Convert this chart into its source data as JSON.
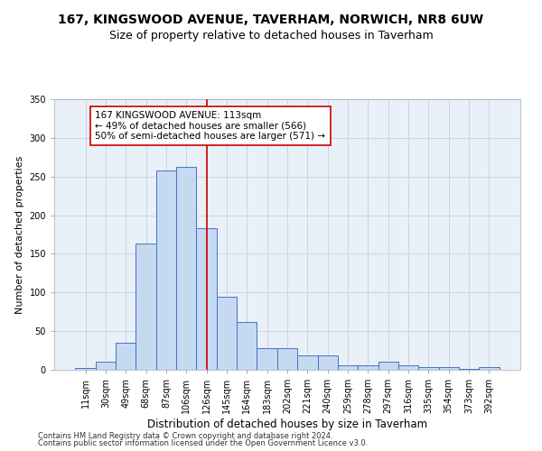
{
  "title": "167, KINGSWOOD AVENUE, TAVERHAM, NORWICH, NR8 6UW",
  "subtitle": "Size of property relative to detached houses in Taverham",
  "xlabel": "Distribution of detached houses by size in Taverham",
  "ylabel": "Number of detached properties",
  "categories": [
    "11sqm",
    "30sqm",
    "49sqm",
    "68sqm",
    "87sqm",
    "106sqm",
    "126sqm",
    "145sqm",
    "164sqm",
    "183sqm",
    "202sqm",
    "221sqm",
    "240sqm",
    "259sqm",
    "278sqm",
    "297sqm",
    "316sqm",
    "335sqm",
    "354sqm",
    "373sqm",
    "392sqm"
  ],
  "values": [
    2,
    10,
    35,
    163,
    258,
    262,
    183,
    95,
    62,
    28,
    28,
    19,
    19,
    6,
    6,
    10,
    6,
    4,
    4,
    1,
    3
  ],
  "bar_color": "#c5d9f1",
  "bar_edge_color": "#4472c4",
  "vline_x": 6.0,
  "vline_color": "#cc0000",
  "annotation_text": "167 KINGSWOOD AVENUE: 113sqm\n← 49% of detached houses are smaller (566)\n50% of semi-detached houses are larger (571) →",
  "annotation_box_color": "#ffffff",
  "annotation_edge_color": "#cc0000",
  "ylim": [
    0,
    350
  ],
  "yticks": [
    0,
    50,
    100,
    150,
    200,
    250,
    300,
    350
  ],
  "bg_color": "#eaf0f8",
  "grid_color": "#c8d4e8",
  "footer1": "Contains HM Land Registry data © Crown copyright and database right 2024.",
  "footer2": "Contains public sector information licensed under the Open Government Licence v3.0.",
  "title_fontsize": 10,
  "subtitle_fontsize": 9,
  "tick_fontsize": 7,
  "xlabel_fontsize": 8.5,
  "ylabel_fontsize": 8,
  "annotation_fontsize": 7.5,
  "footer_fontsize": 6
}
